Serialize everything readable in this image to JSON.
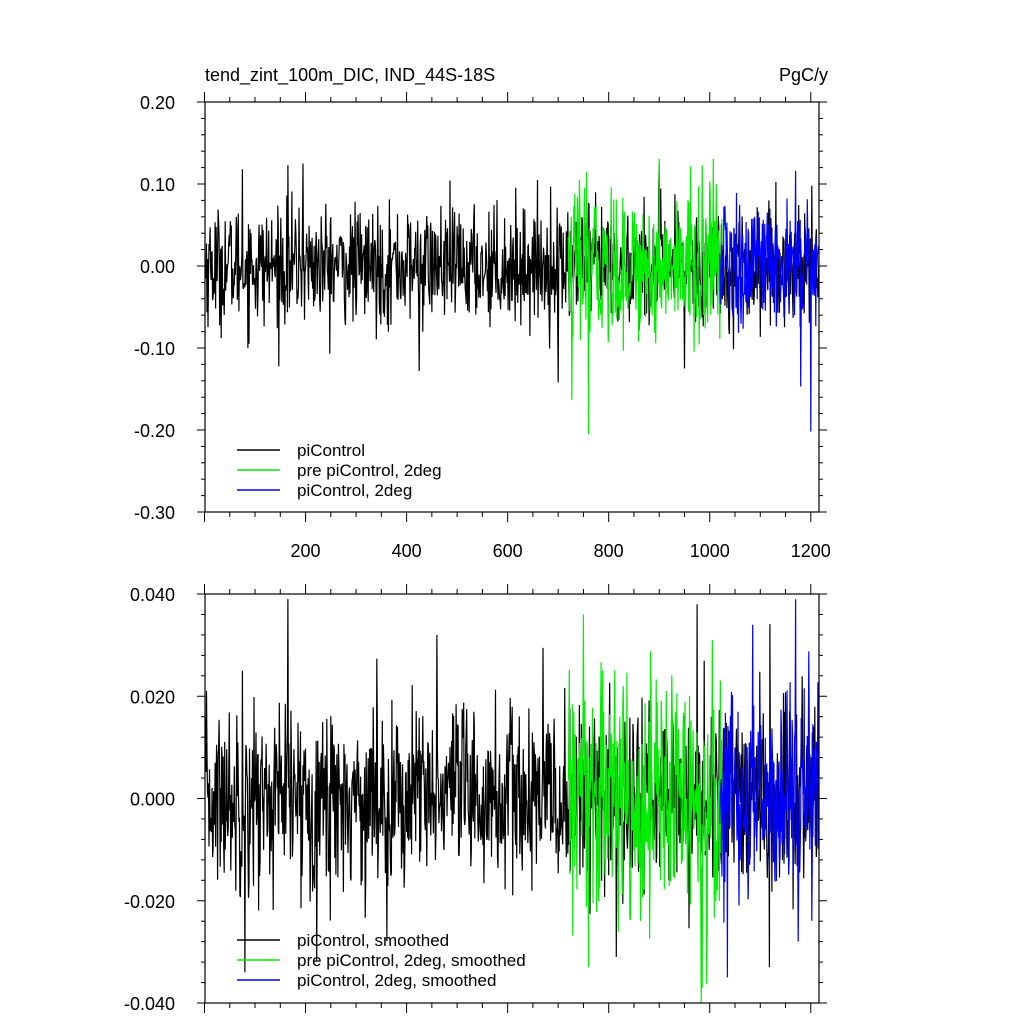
{
  "header": {
    "title": "tend_zint_100m_DIC, IND_44S-18S",
    "units": "PgC/y"
  },
  "colors": {
    "piControl": "#000000",
    "pre_piControl_2deg": "#00ee00",
    "piControl_2deg": "#0000ff",
    "axis": "#000000",
    "background": "#ffffff"
  },
  "chart_data": [
    {
      "type": "line",
      "panel": "top",
      "title": "tend_zint_100m_DIC, IND_44S-18S",
      "units": "PgC/y",
      "xlim": [
        1,
        1240
      ],
      "ylim": [
        -0.3,
        0.2
      ],
      "x_ticks": [
        200,
        400,
        600,
        800,
        1000,
        1200
      ],
      "x_tick_labels": [
        "200",
        "400",
        "600",
        "800",
        "1000",
        "1200"
      ],
      "y_ticks": [
        -0.3,
        -0.2,
        -0.1,
        0.0,
        0.1,
        0.2
      ],
      "y_tick_labels": [
        "-0.30",
        "-0.20",
        "-0.10",
        "0.00",
        "0.10",
        "0.20"
      ],
      "grid": false,
      "legend_position": "bottom-left",
      "series": [
        {
          "name": "piControl",
          "color": "#000000",
          "x_range": [
            1,
            1220
          ],
          "mean": 0.0,
          "typical_amplitude": 0.035,
          "notable_points": [
            [
              75,
              0.118
            ],
            [
              165,
              0.123
            ],
            [
              195,
              0.125
            ],
            [
              425,
              -0.128
            ],
            [
              700,
              -0.142
            ],
            [
              900,
              0.123
            ],
            [
              950,
              -0.125
            ]
          ]
        },
        {
          "name": "pre piControl, 2deg",
          "color": "#00ee00",
          "x_range": [
            720,
            1025
          ],
          "mean": 0.0,
          "typical_amplitude": 0.045,
          "notable_points": [
            [
              727,
              -0.163
            ],
            [
              760,
              -0.205
            ],
            [
              900,
              0.131
            ],
            [
              985,
              0.123
            ]
          ]
        },
        {
          "name": "piControl, 2deg",
          "color": "#0000ff",
          "x_range": [
            1020,
            1220
          ],
          "mean": 0.0,
          "typical_amplitude": 0.04,
          "notable_points": [
            [
              1170,
              0.116
            ],
            [
              1180,
              -0.147
            ],
            [
              1200,
              -0.202
            ]
          ]
        }
      ]
    },
    {
      "type": "line",
      "panel": "bottom",
      "xlim": [
        1,
        1240
      ],
      "ylim": [
        -0.04,
        0.04
      ],
      "y_ticks": [
        -0.04,
        -0.02,
        0.0,
        0.02,
        0.04
      ],
      "y_tick_labels": [
        "-0.040",
        "-0.020",
        "0.000",
        "0.020",
        "0.040"
      ],
      "grid": false,
      "legend_position": "bottom-left",
      "series": [
        {
          "name": "piControl, smoothed",
          "color": "#000000",
          "x_range": [
            1,
            1220
          ],
          "mean": 0.0,
          "typical_amplitude": 0.009,
          "notable_points": [
            [
              165,
              0.039
            ],
            [
              75,
              0.025
            ],
            [
              460,
              0.032
            ],
            [
              975,
              0.038
            ],
            [
              80,
              -0.034
            ],
            [
              815,
              -0.031
            ]
          ]
        },
        {
          "name": "pre piControl, 2deg, smoothed",
          "color": "#00ee00",
          "x_range": [
            720,
            1025
          ],
          "mean": 0.0,
          "typical_amplitude": 0.012,
          "notable_points": [
            [
              750,
              0.036
            ],
            [
              760,
              -0.033
            ],
            [
              985,
              -0.037
            ],
            [
              1005,
              0.031
            ]
          ]
        },
        {
          "name": "piControl, 2deg, smoothed",
          "color": "#0000ff",
          "x_range": [
            1020,
            1220
          ],
          "mean": 0.0,
          "typical_amplitude": 0.01,
          "notable_points": [
            [
              1170,
              0.039
            ],
            [
              1035,
              -0.035
            ],
            [
              1085,
              0.034
            ],
            [
              1175,
              -0.028
            ]
          ]
        }
      ]
    }
  ]
}
